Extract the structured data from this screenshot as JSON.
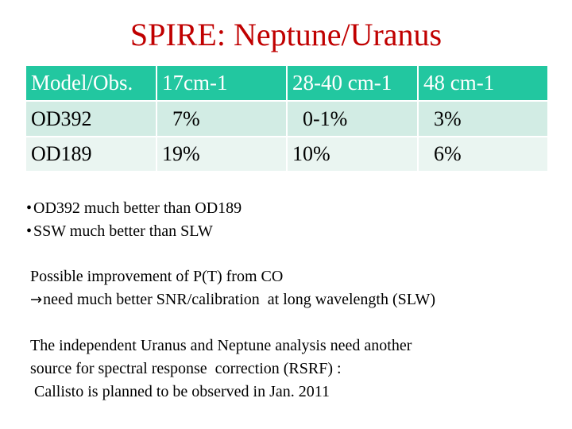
{
  "slide": {
    "title": "SPIRE: Neptune/Uranus"
  },
  "table": {
    "headers": [
      "Model/Obs.",
      "17cm-1",
      "28-40 cm-1",
      "48 cm-1"
    ],
    "rows": [
      [
        "OD392",
        "  7%",
        "  0-1%",
        "  3%"
      ],
      [
        "OD189",
        "19%",
        "10%",
        "  6%"
      ]
    ]
  },
  "bullets": [
    "OD392 much better than OD189",
    "SSW much better than SLW"
  ],
  "paragraphs": {
    "improvement_line1": "Possible improvement of P(T) from CO",
    "improvement_line2": "need much better SNR/calibration  at long wavelength (SLW)",
    "independent_line1": "The independent Uranus and Neptune analysis need another",
    "independent_line2": "source for spectral response  correction (RSRF) :",
    "independent_line3": " Callisto is planned to be observed in Jan. 2011"
  },
  "icons": {
    "arrow": "right-arrow-icon"
  },
  "colors": {
    "title": "#c00000",
    "header_bg": "#22c7a0",
    "row_odd_bg": "#d2ece4",
    "row_even_bg": "#eaf5f1"
  }
}
